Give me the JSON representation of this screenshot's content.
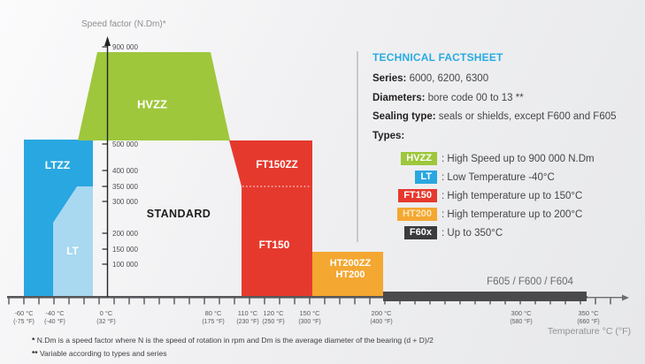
{
  "colors": {
    "green": "#9ec73c",
    "blue": "#29a7e0",
    "light_blue": "#a9d8f1",
    "red": "#e6392e",
    "orange": "#f4a731",
    "dark_bar": "#4a4a4c",
    "badge_dark": "#3b3b3d",
    "cyan": "#29abe2",
    "axis": "#56575a"
  },
  "chart_data": {
    "type": "area",
    "title": "",
    "ylabel": "Speed factor (N.Dm)*",
    "xlabel": "Temperature °C (°F)",
    "grid": false,
    "y_ticks": [
      "900 000",
      "500 000",
      "400 000",
      "350 000",
      "300 000",
      "200 000",
      "150 000",
      "100 000"
    ],
    "y_tick_values": [
      900000,
      500000,
      400000,
      350000,
      300000,
      200000,
      150000,
      100000
    ],
    "x_ticks": [
      {
        "c": "-60 °C",
        "f": "(-75 °F)"
      },
      {
        "c": "-40 °C",
        "f": "(-40 °F)"
      },
      {
        "c": "0 °C",
        "f": "(32 °F)"
      },
      {
        "c": "80 °C",
        "f": "(175 °F)"
      },
      {
        "c": "110 °C",
        "f": "(230 °F)"
      },
      {
        "c": "120 °C",
        "f": "(250 °F)"
      },
      {
        "c": "150 °C",
        "f": "(300 °F)"
      },
      {
        "c": "200 °C",
        "f": "(400 °F)"
      },
      {
        "c": "300 °C",
        "f": "(580 °F)"
      },
      {
        "c": "350 °C",
        "f": "(660 °F)"
      }
    ],
    "regions": [
      {
        "label": "HVZZ",
        "color_key": "green",
        "speed_range": [
          500000,
          900000
        ]
      },
      {
        "label": "LTZZ",
        "color_key": "blue",
        "temp_range_c": [
          -60,
          -10
        ],
        "speed_range": [
          0,
          500000
        ]
      },
      {
        "label": "LT",
        "color_key": "light_blue",
        "temp_range_c": [
          -40,
          -10
        ],
        "speed_range": [
          0,
          350000
        ]
      },
      {
        "label": "STANDARD"
      },
      {
        "label": "FT150ZZ",
        "color_key": "red",
        "temp_max_c": 120,
        "speed_range": [
          350000,
          500000
        ]
      },
      {
        "label": "FT150",
        "color_key": "red",
        "temp_max_c": 150,
        "speed_range": [
          0,
          350000
        ]
      },
      {
        "label": "HT200ZZ",
        "label2": "HT200",
        "color_key": "orange",
        "temp_range_c": [
          150,
          200
        ],
        "speed_range": [
          0,
          150000
        ]
      },
      {
        "label": "F605 / F600 / F604",
        "color_key": "dark_bar",
        "temp_range_c": [
          200,
          350
        ]
      }
    ]
  },
  "factsheet": {
    "title": "TECHNICAL FACTSHEET",
    "rows": [
      {
        "label": "Series:",
        "value": "6000, 6200, 6300"
      },
      {
        "label": "Diameters:",
        "value": "bore code 00 to 13 **"
      },
      {
        "label": "Sealing type:",
        "value": "seals or shields, except F600 and F605"
      }
    ],
    "types_label": "Types:",
    "legend": [
      {
        "badge": "HVZZ",
        "color_key": "green",
        "text": ": High Speed up to 900 000 N.Dm"
      },
      {
        "badge": "LT",
        "color_key": "blue",
        "text": ": Low Temperature -40°C"
      },
      {
        "badge": "FT150",
        "color_key": "red",
        "text": ": High temperature up to 150°C"
      },
      {
        "badge": "HT200",
        "color_key": "orange",
        "text": ": High temperature up to 200°C"
      },
      {
        "badge": "F60x",
        "color_key": "badge_dark",
        "text": ": Up to 350°C"
      }
    ]
  },
  "footnotes": [
    {
      "mark": "*",
      "text": "N.Dm is a speed factor where N is the speed of rotation in rpm and Dm is the average diameter of the bearing (d + D)/2"
    },
    {
      "mark": "**",
      "text": "Variable according to types and series"
    }
  ]
}
